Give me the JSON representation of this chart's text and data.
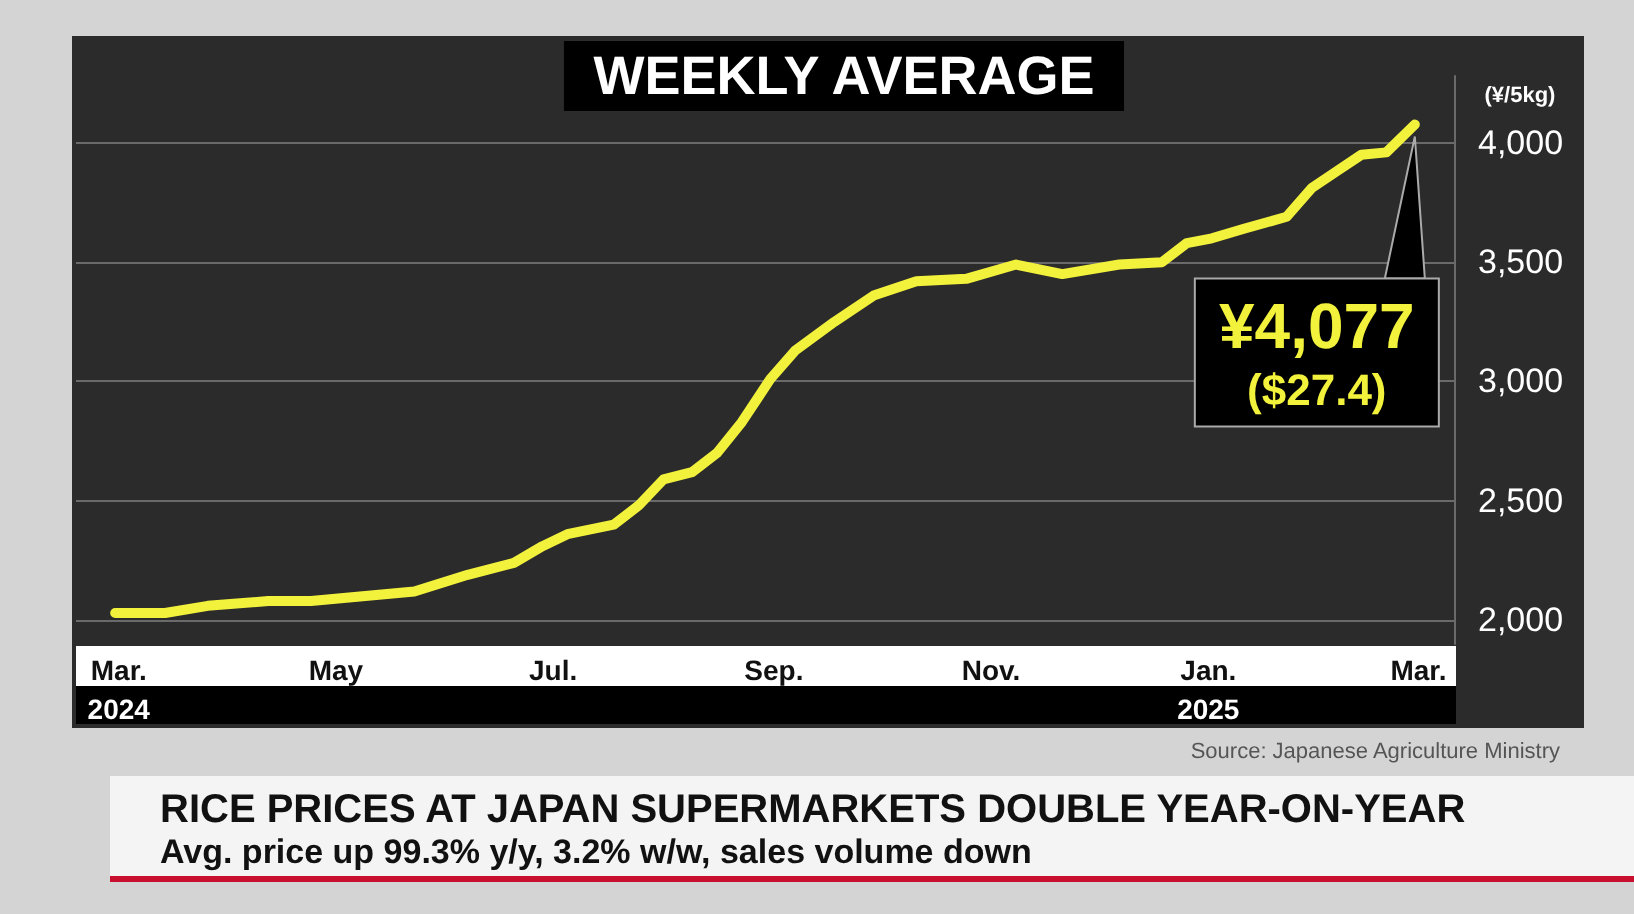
{
  "chart_data": {
    "type": "line",
    "title": "WEEKLY AVERAGE",
    "ylabel": "(¥/5kg)",
    "x": [
      "2024-02-29",
      "2024-03-14",
      "2024-03-26",
      "2024-04-12",
      "2024-04-24",
      "2024-05-23",
      "2024-06-07",
      "2024-06-20",
      "2024-06-28",
      "2024-07-05",
      "2024-07-18",
      "2024-07-25",
      "2024-08-01",
      "2024-08-09",
      "2024-08-16",
      "2024-08-23",
      "2024-08-31",
      "2024-09-07",
      "2024-09-18",
      "2024-09-29",
      "2024-10-11",
      "2024-10-25",
      "2024-11-08",
      "2024-11-21",
      "2024-12-07",
      "2024-12-19",
      "2024-12-26",
      "2025-01-02",
      "2025-01-11",
      "2025-01-23",
      "2025-01-30",
      "2025-02-06",
      "2025-02-13",
      "2025-02-20",
      "2025-02-28"
    ],
    "series": [
      {
        "color": "#f2f23c",
        "values": [
          2030,
          2030,
          2060,
          2080,
          2080,
          2120,
          2190,
          2240,
          2310,
          2360,
          2400,
          2480,
          2590,
          2620,
          2700,
          2830,
          3010,
          3130,
          3250,
          3360,
          3420,
          3430,
          3490,
          3450,
          3490,
          3500,
          3580,
          3600,
          3640,
          3690,
          3810,
          3880,
          3950,
          3960,
          4077
        ]
      }
    ],
    "xlim": [
      "2024-02-18",
      "2025-03-11"
    ],
    "xticks": [
      {
        "value": "2024-03-01",
        "label": "Mar.\n2024"
      },
      {
        "value": "2024-05-01",
        "label": "May"
      },
      {
        "value": "2024-07-01",
        "label": "Jul."
      },
      {
        "value": "2024-09-01",
        "label": "Sep."
      },
      {
        "value": "2024-11-01",
        "label": "Nov."
      },
      {
        "value": "2025-01-01",
        "label": "Jan.\n2025"
      },
      {
        "value": "2025-03-01",
        "label": "Mar."
      }
    ],
    "ylim": [
      1900,
      4280
    ],
    "yticks": [
      {
        "value": 2000,
        "label": "2,000"
      },
      {
        "value": 2500,
        "label": "2,500"
      },
      {
        "value": 3000,
        "label": "3,000"
      },
      {
        "value": 3500,
        "label": "3,500"
      },
      {
        "value": 4000,
        "label": "4,000"
      }
    ],
    "grid": "y",
    "marker": "none",
    "line_style": "solid",
    "annotations": [
      {
        "text": "¥4,077\n($27.4)",
        "x": "2025-02-28",
        "y": 4077
      },
      "Source: Japanese Agriculture Ministry",
      "RICE PRICES AT JAPAN SUPERMARKETS DOUBLE YEAR-ON-YEAR",
      "Avg. price up 99.3% y/y, 3.2% w/w, sales volume down"
    ]
  }
}
